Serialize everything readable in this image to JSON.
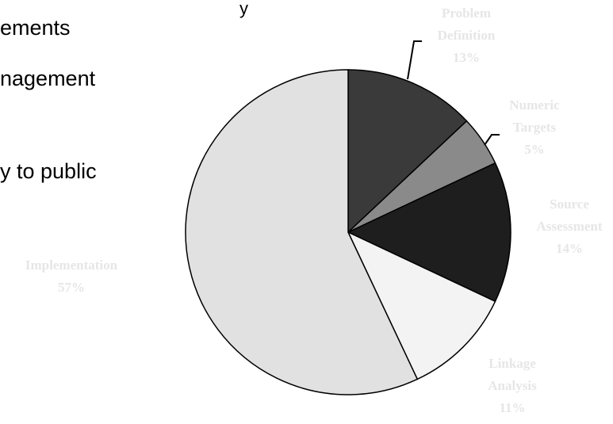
{
  "slide_text": {
    "line1": "y",
    "line2": "ements",
    "line3": "nagement",
    "line4": "y to public"
  },
  "chart_data": {
    "type": "pie",
    "start_angle_deg": 0,
    "direction": "clockwise",
    "slices": [
      {
        "label_lines": [
          "Problem",
          "Definition"
        ],
        "percent_label": "13%",
        "value": 13,
        "color": "#3a3a3a"
      },
      {
        "label_lines": [
          "Numeric",
          "Targets"
        ],
        "percent_label": "5%",
        "value": 5,
        "color": "#8a8a8a"
      },
      {
        "label_lines": [
          "Source",
          "Assessment"
        ],
        "percent_label": "14%",
        "value": 14,
        "color": "#1e1e1e"
      },
      {
        "label_lines": [
          "Linkage",
          "Analysis"
        ],
        "percent_label": "11%",
        "value": 11,
        "color": "#f3f3f3"
      },
      {
        "label_lines": [
          "Implementation"
        ],
        "percent_label": "57%",
        "value": 57,
        "color": "#e1e1e1"
      }
    ]
  }
}
